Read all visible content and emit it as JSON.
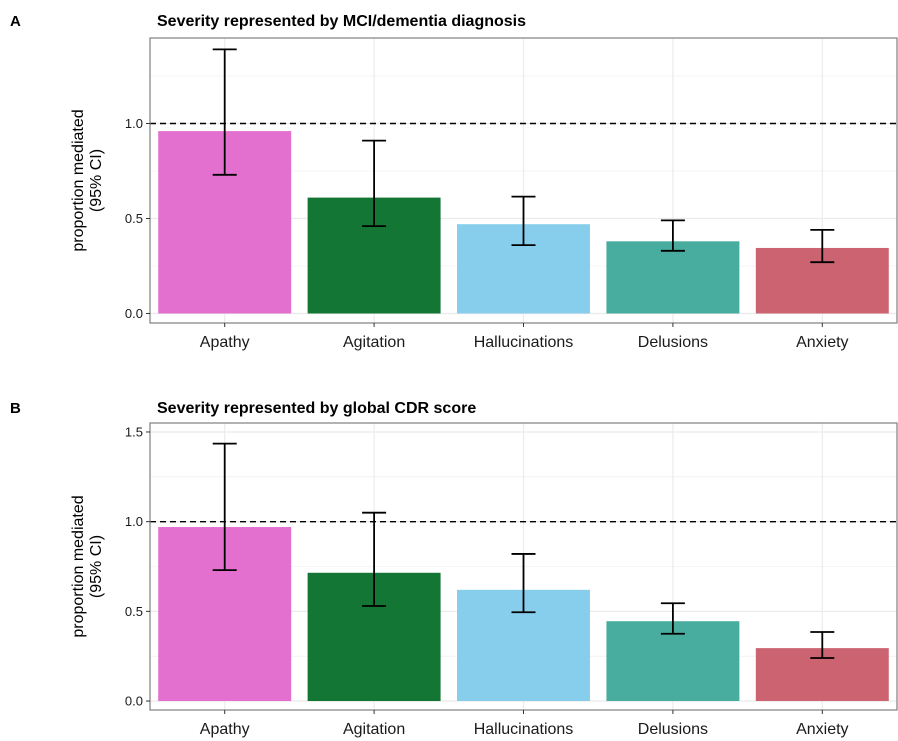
{
  "chart_data": [
    {
      "panel_label": "A",
      "type": "bar",
      "title": "Severity represented by MCI/dementia diagnosis",
      "ylabel_line1": "proportion mediated",
      "ylabel_line2": "(95% CI)",
      "xlabel": "",
      "categories": [
        "Apathy",
        "Agitation",
        "Hallucinations",
        "Delusions",
        "Anxiety"
      ],
      "values": [
        0.96,
        0.61,
        0.47,
        0.38,
        0.345
      ],
      "ci_lower": [
        0.73,
        0.46,
        0.36,
        0.33,
        0.27
      ],
      "ci_upper": [
        1.39,
        0.91,
        0.615,
        0.49,
        0.44
      ],
      "ylim": [
        -0.05,
        1.45
      ],
      "yticks": [
        0.0,
        0.5,
        1.0
      ],
      "ytick_labels": [
        "0.0",
        "0.5",
        "1.0"
      ],
      "reference_line": 1.0,
      "grid": true,
      "legend": "none"
    },
    {
      "panel_label": "B",
      "type": "bar",
      "title": "Severity represented by global CDR score",
      "ylabel_line1": "proportion mediated",
      "ylabel_line2": "(95% CI)",
      "xlabel": "",
      "categories": [
        "Apathy",
        "Agitation",
        "Hallucinations",
        "Delusions",
        "Anxiety"
      ],
      "values": [
        0.97,
        0.715,
        0.62,
        0.445,
        0.295
      ],
      "ci_lower": [
        0.73,
        0.53,
        0.495,
        0.375,
        0.24
      ],
      "ci_upper": [
        1.435,
        1.05,
        0.82,
        0.545,
        0.385
      ],
      "ylim": [
        -0.05,
        1.55
      ],
      "yticks": [
        0.0,
        0.5,
        1.0,
        1.5
      ],
      "ytick_labels": [
        "0.0",
        "0.5",
        "1.0",
        "1.5"
      ],
      "reference_line": 1.0,
      "grid": true,
      "legend": "none"
    }
  ],
  "colors": {
    "Apathy": "#e36fcf",
    "Agitation": "#147634",
    "Hallucinations": "#87ceed",
    "Delusions": "#48ad9f",
    "Anxiety": "#cb6470",
    "grid": "#ebebeb",
    "panel_border": "#7f7f7f",
    "errorbar": "#000000",
    "reference_line": "#000000"
  }
}
